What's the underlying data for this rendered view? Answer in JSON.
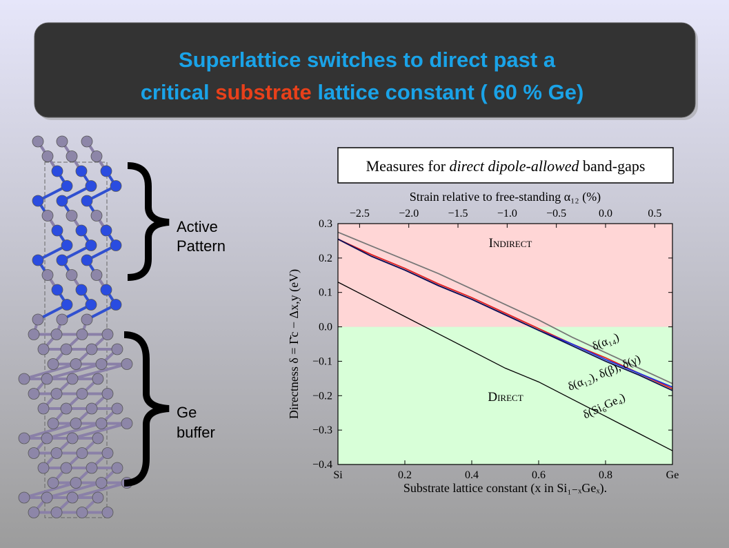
{
  "slide": {
    "title_line1": "Superlattice switches to direct past a",
    "title_line2": [
      "critical ",
      "substrate",
      " lattice constant ( 60 % Ge)"
    ],
    "active_label": [
      "Active",
      "Pattern"
    ],
    "buffer_label": [
      "Ge",
      "buffer"
    ]
  },
  "chart_data": {
    "type": "line",
    "title": [
      "Measures for ",
      "direct dipole-allowed",
      " band-gaps"
    ],
    "x_label": "Substrate lattice constant (x in Si₁₋ₓGeₓ).",
    "y_label": "Directness δ = Γ̄c − Δx,y (eV)",
    "x2_label": "Strain relative to free-standing α₁₂ (%)",
    "x": [
      0,
      0.1,
      0.2,
      0.3,
      0.4,
      0.5,
      0.6,
      0.7,
      0.8,
      0.9,
      1.0
    ],
    "xlim": [
      0,
      1
    ],
    "xticks": [
      {
        "value": 0,
        "label": "Si"
      },
      0.2,
      0.4,
      0.6,
      0.8,
      {
        "value": 1,
        "label": "Ge"
      }
    ],
    "x2lim": [
      -2.72,
      0.68
    ],
    "x2ticks": [
      {
        "value": -2.5,
        "label": "−2.5"
      },
      {
        "value": -2.0,
        "label": "−2.0"
      },
      {
        "value": -1.5,
        "label": "−1.5"
      },
      {
        "value": -1.0,
        "label": "−1.0"
      },
      {
        "value": -0.5,
        "label": "−0.5"
      },
      {
        "value": 0.0,
        "label": "0.0"
      },
      0.5
    ],
    "ylim": [
      -0.4,
      0.3
    ],
    "yticks": [
      {
        "value": -0.4,
        "label": "−0.4"
      },
      {
        "value": -0.3,
        "label": "−0.3"
      },
      {
        "value": -0.2,
        "label": "−0.2"
      },
      {
        "value": -0.1,
        "label": "−0.1"
      },
      {
        "value": 0.0,
        "label": "0.0"
      },
      0.1,
      0.2,
      0.3
    ],
    "regions": [
      {
        "label": "Indirect",
        "color": "#ffd6d6"
      },
      {
        "label": "Direct",
        "color": "#d8ffd8"
      }
    ],
    "series": [
      {
        "color": "#777777",
        "values": [
          0.275,
          0.235,
          0.195,
          0.155,
          0.11,
          0.065,
          0.02,
          -0.03,
          -0.075,
          -0.12,
          -0.165
        ]
      },
      {
        "color": "#e02020",
        "values": [
          0.255,
          0.21,
          0.17,
          0.125,
          0.085,
          0.04,
          -0.005,
          -0.05,
          -0.09,
          -0.135,
          -0.18
        ]
      },
      {
        "color": "#2030e0",
        "values": [
          0.255,
          0.205,
          0.165,
          0.12,
          0.08,
          0.035,
          -0.01,
          -0.05,
          -0.095,
          -0.135,
          -0.175
        ]
      },
      {
        "color": "#101050",
        "values": [
          0.255,
          0.205,
          0.165,
          0.12,
          0.08,
          0.035,
          -0.01,
          -0.055,
          -0.1,
          -0.14,
          -0.185
        ]
      },
      {
        "color": "#000000",
        "values": [
          0.13,
          0.08,
          0.03,
          -0.02,
          -0.07,
          -0.12,
          -0.16,
          -0.21,
          -0.26,
          -0.31,
          -0.36
        ]
      }
    ],
    "annotations": [
      "δ(α₁₄)",
      "δ(α₁₂), δ(β), δ(γ)",
      "δ(Si₆Ge₄)"
    ]
  }
}
